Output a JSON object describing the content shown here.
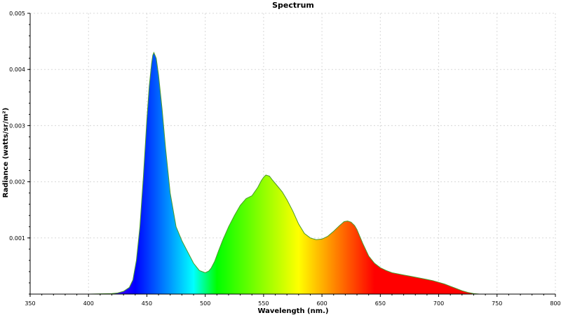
{
  "chart_data": {
    "type": "area",
    "title": "Spectrum",
    "xlabel": "Wavelength (nm.)",
    "ylabel": "Radiance (watts/sr/m²)",
    "xlim": [
      350,
      800
    ],
    "ylim": [
      0,
      0.005
    ],
    "x_ticks": [
      350,
      400,
      450,
      500,
      550,
      600,
      650,
      700,
      750,
      800
    ],
    "x_tick_labels": [
      "350",
      "400",
      "450",
      "500",
      "550",
      "600",
      "650",
      "700",
      "750",
      "800"
    ],
    "y_ticks": [
      0.001,
      0.002,
      0.003,
      0.004,
      0.005
    ],
    "y_tick_labels": [
      "0.001",
      "0.002",
      "0.003",
      "0.004",
      "0.005"
    ],
    "grid": true,
    "fill": "visible-spectrum gradient (wavelength colored)",
    "line_color": "#4a9a2a",
    "series": [
      {
        "x": [
          380,
          400,
          420,
          425,
          430,
          435,
          438,
          441,
          444,
          447,
          450,
          452,
          454,
          455,
          456,
          457,
          458,
          460,
          463,
          466,
          470,
          475,
          480,
          485,
          490,
          495,
          500,
          503,
          505,
          508,
          511,
          515,
          520,
          525,
          530,
          535,
          540,
          545,
          548,
          550,
          552,
          555,
          558,
          562,
          566,
          570,
          575,
          580,
          585,
          590,
          595,
          600,
          605,
          610,
          615,
          619,
          622,
          625,
          628,
          630,
          635,
          640,
          645,
          650,
          655,
          660,
          665,
          670,
          675,
          680,
          685,
          690,
          695,
          700,
          705,
          710,
          715,
          720,
          725,
          730,
          735,
          740,
          750,
          760,
          770,
          780
        ],
        "y": [
          0.0,
          0.0,
          1e-05,
          2e-05,
          5e-05,
          0.00012,
          0.00025,
          0.0006,
          0.0012,
          0.0021,
          0.0031,
          0.0037,
          0.0041,
          0.00425,
          0.0043,
          0.00425,
          0.0042,
          0.0039,
          0.0033,
          0.0026,
          0.0018,
          0.0012,
          0.00095,
          0.00075,
          0.00055,
          0.00042,
          0.00038,
          0.00041,
          0.00046,
          0.00058,
          0.00075,
          0.00096,
          0.0012,
          0.0014,
          0.00158,
          0.0017,
          0.00175,
          0.0019,
          0.00202,
          0.00208,
          0.00212,
          0.0021,
          0.00202,
          0.00192,
          0.00182,
          0.00168,
          0.00148,
          0.00125,
          0.00108,
          0.001,
          0.00097,
          0.00098,
          0.00103,
          0.00112,
          0.00122,
          0.00129,
          0.0013,
          0.00128,
          0.00122,
          0.00115,
          0.0009,
          0.00068,
          0.00055,
          0.00047,
          0.00042,
          0.00038,
          0.00036,
          0.00034,
          0.00032,
          0.0003,
          0.00028,
          0.00026,
          0.00024,
          0.00021,
          0.00018,
          0.00014,
          0.0001,
          6e-05,
          3e-05,
          1e-05,
          0.0,
          0.0,
          0.0,
          0.0,
          0.0,
          0.0
        ]
      }
    ]
  }
}
